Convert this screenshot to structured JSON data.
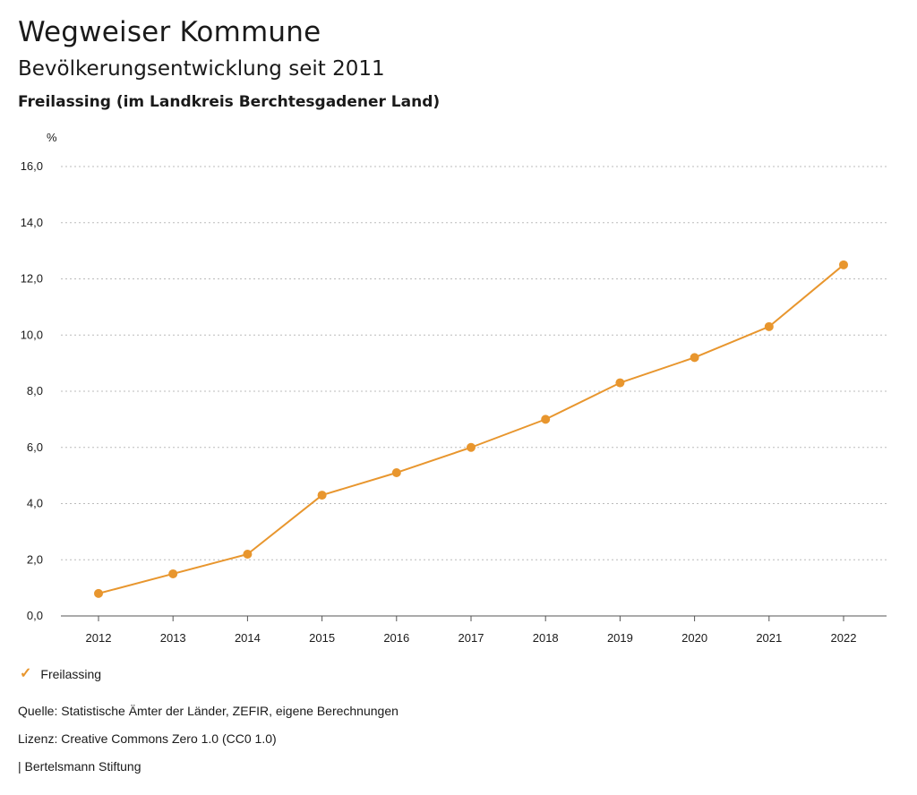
{
  "header": {
    "title": "Wegweiser Kommune",
    "subtitle": "Bevölkerungsentwicklung seit 2011",
    "region": "Freilassing (im Landkreis Berchtesgadener Land)"
  },
  "colors": {
    "series": "#e8962e",
    "grid": "#bbbbbb",
    "axis": "#555555"
  },
  "chart_data": {
    "type": "line",
    "ylabel": "%",
    "xlabel": "",
    "ylim": [
      0,
      16
    ],
    "yticks": [
      0,
      2,
      4,
      6,
      8,
      10,
      12,
      14,
      16
    ],
    "ytick_labels": [
      "0,0",
      "2,0",
      "4,0",
      "6,0",
      "8,0",
      "10,0",
      "12,0",
      "14,0",
      "16,0"
    ],
    "categories": [
      "2012",
      "2013",
      "2014",
      "2015",
      "2016",
      "2017",
      "2018",
      "2019",
      "2020",
      "2021",
      "2022"
    ],
    "grid": "horizontal-dotted",
    "legend_position": "bottom-left",
    "series": [
      {
        "name": "Freilassing",
        "values": [
          0.8,
          1.5,
          2.2,
          4.3,
          5.1,
          6.0,
          7.0,
          8.3,
          9.2,
          10.3,
          12.5
        ]
      }
    ]
  },
  "legend": {
    "check_icon": "check-icon",
    "label": "Freilassing"
  },
  "footer": {
    "source": "Quelle: Statistische Ämter der Länder, ZEFIR, eigene Berechnungen",
    "license": "Lizenz: Creative Commons Zero 1.0 (CC0 1.0)",
    "publisher": "| Bertelsmann Stiftung"
  }
}
